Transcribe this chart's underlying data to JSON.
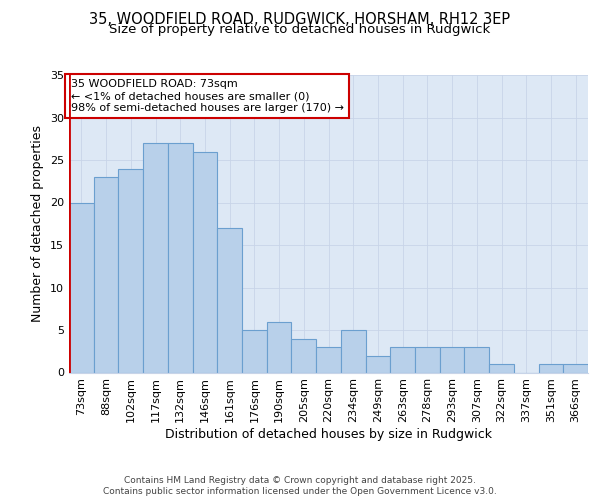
{
  "title_line1": "35, WOODFIELD ROAD, RUDGWICK, HORSHAM, RH12 3EP",
  "title_line2": "Size of property relative to detached houses in Rudgwick",
  "xlabel": "Distribution of detached houses by size in Rudgwick",
  "ylabel": "Number of detached properties",
  "bar_values": [
    20,
    23,
    24,
    27,
    27,
    26,
    17,
    5,
    6,
    4,
    3,
    5,
    2,
    3,
    3,
    3,
    3,
    1,
    0,
    1,
    1
  ],
  "bar_labels": [
    "73sqm",
    "88sqm",
    "102sqm",
    "117sqm",
    "132sqm",
    "146sqm",
    "161sqm",
    "176sqm",
    "190sqm",
    "205sqm",
    "220sqm",
    "234sqm",
    "249sqm",
    "263sqm",
    "278sqm",
    "293sqm",
    "307sqm",
    "322sqm",
    "337sqm",
    "351sqm",
    "366sqm"
  ],
  "bar_color": "#b8d0ea",
  "bar_edge_color": "#6b9fcf",
  "highlight_color": "#cc0000",
  "annotation_text": "35 WOODFIELD ROAD: 73sqm\n← <1% of detached houses are smaller (0)\n98% of semi-detached houses are larger (170) →",
  "annotation_box_facecolor": "#ffffff",
  "annotation_box_edgecolor": "#cc0000",
  "figure_bg": "#ffffff",
  "plot_bg": "#dde8f5",
  "footer_line1": "Contains HM Land Registry data © Crown copyright and database right 2025.",
  "footer_line2": "Contains public sector information licensed under the Open Government Licence v3.0.",
  "ylim": [
    0,
    35
  ],
  "yticks": [
    0,
    5,
    10,
    15,
    20,
    25,
    30,
    35
  ],
  "title_fontsize": 10.5,
  "subtitle_fontsize": 9.5,
  "axis_label_fontsize": 9,
  "tick_fontsize": 8,
  "annotation_fontsize": 8,
  "footer_fontsize": 6.5
}
